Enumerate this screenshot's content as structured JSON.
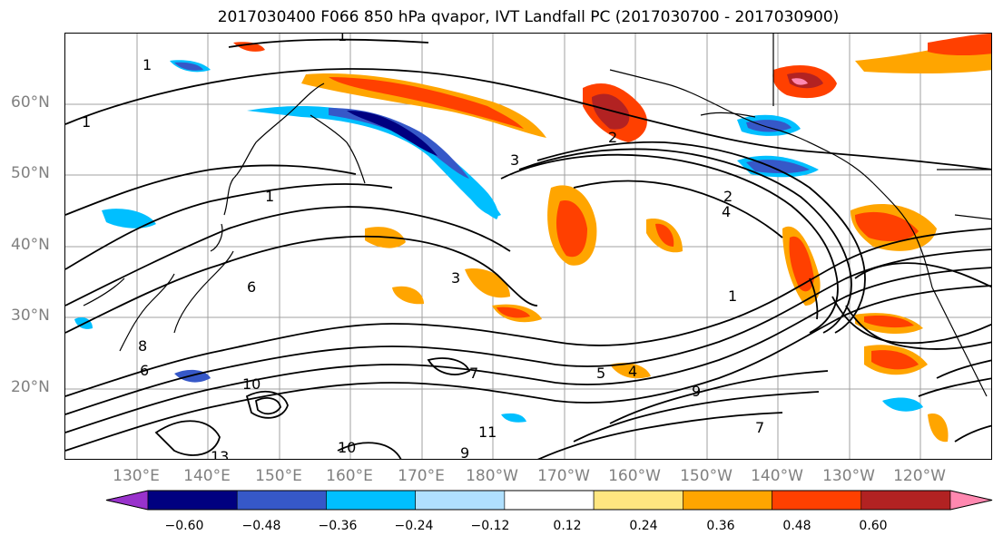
{
  "title": "2017030400 F066 850 hPa qvapor, IVT Landfall PC (2017030700 - 2017030900)",
  "lat_labels": [
    "60°N",
    "50°N",
    "40°N",
    "30°N",
    "20°N"
  ],
  "lon_labels": [
    "130°E",
    "140°E",
    "150°E",
    "160°E",
    "170°E",
    "180°W",
    "170°W",
    "160°W",
    "150°W",
    "140°W",
    "130°W",
    "120°W"
  ],
  "colorbar": {
    "ticks": [
      "−0.60",
      "−0.48",
      "−0.36",
      "−0.24",
      "−0.12",
      "0.12",
      "0.24",
      "0.36",
      "0.48",
      "0.60"
    ],
    "colors": [
      "#9932cc",
      "#000080",
      "#3658c8",
      "#00bfff",
      "#b0e0ff",
      "#ffffff",
      "#ffe680",
      "#ffa500",
      "#ff4000",
      "#b22222",
      "#ff88b0"
    ]
  },
  "contour_labels": [
    "1",
    "1",
    "1",
    "1",
    "1",
    "2",
    "2",
    "3",
    "3",
    "4",
    "4",
    "5",
    "6",
    "6",
    "7",
    "7",
    "8",
    "9",
    "9",
    "10",
    "10",
    "11",
    "13"
  ]
}
